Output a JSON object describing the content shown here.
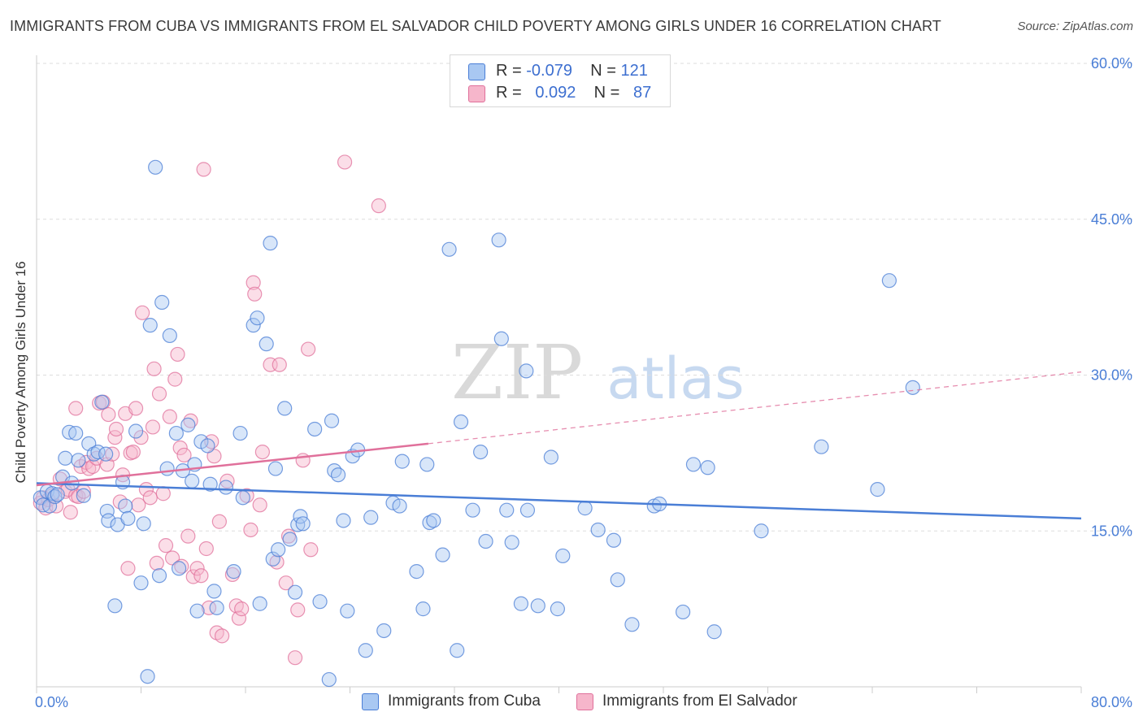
{
  "header": {
    "title": "IMMIGRANTS FROM CUBA VS IMMIGRANTS FROM EL SALVADOR CHILD POVERTY AMONG GIRLS UNDER 16 CORRELATION CHART",
    "source": "Source: ZipAtlas.com"
  },
  "watermark": {
    "zip": "ZIP",
    "atlas": "atlas"
  },
  "legend": {
    "rows": [
      {
        "r_label": "R =",
        "r_value": "-0.079",
        "n_label": "N =",
        "n_value": "121",
        "color": "#a9c8f2"
      },
      {
        "r_label": "R =",
        "r_value": "0.092",
        "n_label": "N =",
        "n_value": "87",
        "color": "#f6b6cb"
      }
    ]
  },
  "chart_data": {
    "type": "scatter",
    "ylabel": "Child Poverty Among Girls Under 16",
    "xlim": [
      0,
      80
    ],
    "ylim": [
      0,
      60
    ],
    "x_tick_labels": {
      "min": "0.0%",
      "max": "80.0%"
    },
    "y_ticks": [
      15,
      30,
      45,
      60
    ],
    "y_tick_labels": [
      "15.0%",
      "30.0%",
      "45.0%",
      "60.0%"
    ],
    "grid": "horizontal dashed",
    "legend_position": "top-center",
    "series": [
      {
        "name": "Immigrants from Cuba",
        "color": "#4a7ed6",
        "fill": "#a9c8f2",
        "trend": {
          "x": [
            0,
            80
          ],
          "y": [
            19.6,
            16.2
          ]
        },
        "points": [
          [
            0.3,
            18.2
          ],
          [
            0.5,
            17.5
          ],
          [
            0.8,
            18.8
          ],
          [
            1.0,
            17.4
          ],
          [
            1.2,
            18.6
          ],
          [
            1.4,
            18.3
          ],
          [
            1.6,
            18.5
          ],
          [
            2.0,
            20.2
          ],
          [
            2.2,
            22.0
          ],
          [
            2.5,
            24.5
          ],
          [
            2.7,
            19.6
          ],
          [
            3.0,
            24.4
          ],
          [
            3.2,
            21.8
          ],
          [
            3.6,
            18.4
          ],
          [
            4.0,
            23.4
          ],
          [
            4.4,
            22.4
          ],
          [
            4.7,
            22.6
          ],
          [
            5.0,
            27.4
          ],
          [
            5.3,
            22.4
          ],
          [
            5.4,
            16.9
          ],
          [
            5.5,
            16.0
          ],
          [
            6.0,
            7.8
          ],
          [
            6.2,
            15.6
          ],
          [
            6.6,
            19.7
          ],
          [
            6.8,
            17.4
          ],
          [
            7.0,
            16.2
          ],
          [
            7.6,
            24.6
          ],
          [
            8.0,
            10.0
          ],
          [
            8.2,
            15.7
          ],
          [
            8.5,
            1.0
          ],
          [
            8.7,
            34.8
          ],
          [
            9.1,
            50.0
          ],
          [
            9.4,
            10.7
          ],
          [
            9.6,
            37.0
          ],
          [
            10.0,
            21.0
          ],
          [
            10.2,
            33.8
          ],
          [
            10.7,
            24.4
          ],
          [
            10.9,
            11.4
          ],
          [
            11.2,
            20.8
          ],
          [
            11.6,
            25.2
          ],
          [
            11.9,
            19.8
          ],
          [
            12.1,
            21.4
          ],
          [
            12.3,
            7.3
          ],
          [
            12.6,
            23.6
          ],
          [
            13.1,
            23.2
          ],
          [
            13.3,
            19.5
          ],
          [
            13.6,
            9.2
          ],
          [
            13.8,
            7.6
          ],
          [
            14.5,
            19.2
          ],
          [
            15.1,
            11.1
          ],
          [
            15.6,
            24.4
          ],
          [
            15.8,
            18.2
          ],
          [
            16.6,
            34.8
          ],
          [
            16.9,
            35.5
          ],
          [
            17.1,
            8.0
          ],
          [
            17.6,
            33.0
          ],
          [
            17.9,
            42.7
          ],
          [
            18.1,
            12.3
          ],
          [
            18.3,
            21.0
          ],
          [
            18.5,
            13.2
          ],
          [
            19.0,
            26.8
          ],
          [
            19.4,
            14.2
          ],
          [
            19.8,
            9.1
          ],
          [
            20.0,
            15.6
          ],
          [
            20.2,
            16.4
          ],
          [
            20.4,
            15.7
          ],
          [
            21.3,
            24.8
          ],
          [
            21.7,
            8.2
          ],
          [
            22.6,
            25.6
          ],
          [
            22.8,
            20.8
          ],
          [
            23.1,
            20.4
          ],
          [
            23.5,
            16.0
          ],
          [
            23.8,
            7.3
          ],
          [
            24.2,
            22.2
          ],
          [
            24.6,
            22.8
          ],
          [
            25.2,
            3.5
          ],
          [
            25.6,
            16.3
          ],
          [
            26.6,
            5.4
          ],
          [
            27.3,
            17.7
          ],
          [
            27.8,
            17.4
          ],
          [
            28.0,
            21.7
          ],
          [
            29.1,
            11.1
          ],
          [
            29.6,
            7.5
          ],
          [
            29.9,
            21.4
          ],
          [
            30.1,
            15.8
          ],
          [
            30.4,
            16.0
          ],
          [
            31.1,
            12.7
          ],
          [
            31.6,
            42.1
          ],
          [
            32.2,
            3.5
          ],
          [
            32.5,
            25.5
          ],
          [
            33.4,
            17.0
          ],
          [
            34.0,
            22.6
          ],
          [
            34.4,
            14.0
          ],
          [
            35.4,
            43.0
          ],
          [
            35.6,
            33.5
          ],
          [
            36.0,
            17.0
          ],
          [
            36.4,
            13.9
          ],
          [
            37.1,
            8.0
          ],
          [
            37.5,
            30.4
          ],
          [
            37.6,
            17.0
          ],
          [
            38.4,
            7.8
          ],
          [
            39.4,
            22.1
          ],
          [
            39.9,
            7.5
          ],
          [
            40.3,
            12.6
          ],
          [
            42.0,
            17.2
          ],
          [
            43.0,
            15.1
          ],
          [
            44.2,
            14.1
          ],
          [
            44.5,
            10.3
          ],
          [
            45.6,
            6.0
          ],
          [
            47.3,
            17.4
          ],
          [
            47.7,
            17.6
          ],
          [
            49.5,
            7.2
          ],
          [
            50.3,
            21.4
          ],
          [
            51.4,
            21.1
          ],
          [
            51.9,
            5.3
          ],
          [
            55.5,
            15.0
          ],
          [
            60.1,
            23.1
          ],
          [
            64.4,
            19.0
          ],
          [
            65.3,
            39.1
          ],
          [
            67.1,
            28.8
          ],
          [
            22.4,
            0.7
          ]
        ]
      },
      {
        "name": "Immigrants from El Salvador",
        "color": "#e0709b",
        "fill": "#f6b6cb",
        "trend": {
          "x": [
            0,
            30
          ],
          "y": [
            19.4,
            23.4
          ]
        },
        "trend_dashed": {
          "x": [
            30,
            80
          ],
          "y": [
            23.4,
            30.3
          ]
        },
        "points": [
          [
            0.3,
            17.7
          ],
          [
            0.5,
            18.2
          ],
          [
            0.7,
            17.2
          ],
          [
            0.9,
            18.0
          ],
          [
            1.2,
            18.4
          ],
          [
            1.5,
            17.4
          ],
          [
            1.8,
            20.0
          ],
          [
            2.2,
            18.8
          ],
          [
            2.4,
            19.0
          ],
          [
            2.6,
            16.8
          ],
          [
            3.0,
            18.4
          ],
          [
            3.0,
            26.8
          ],
          [
            3.2,
            18.3
          ],
          [
            3.4,
            21.2
          ],
          [
            3.6,
            18.8
          ],
          [
            3.8,
            21.6
          ],
          [
            4.0,
            21.0
          ],
          [
            4.3,
            21.2
          ],
          [
            4.6,
            22.0
          ],
          [
            4.8,
            27.3
          ],
          [
            5.1,
            27.4
          ],
          [
            5.4,
            21.4
          ],
          [
            5.5,
            26.2
          ],
          [
            5.8,
            22.4
          ],
          [
            6.0,
            24.0
          ],
          [
            6.1,
            24.8
          ],
          [
            6.4,
            17.8
          ],
          [
            6.6,
            20.4
          ],
          [
            6.8,
            26.3
          ],
          [
            7.0,
            11.4
          ],
          [
            7.2,
            22.5
          ],
          [
            7.4,
            22.6
          ],
          [
            7.6,
            26.8
          ],
          [
            7.8,
            17.5
          ],
          [
            8.0,
            24.0
          ],
          [
            8.1,
            36.0
          ],
          [
            8.4,
            19.0
          ],
          [
            8.7,
            18.2
          ],
          [
            8.9,
            25.0
          ],
          [
            9.0,
            30.6
          ],
          [
            9.2,
            11.9
          ],
          [
            9.4,
            28.2
          ],
          [
            9.7,
            18.6
          ],
          [
            9.9,
            13.6
          ],
          [
            10.2,
            26.0
          ],
          [
            10.4,
            12.4
          ],
          [
            10.6,
            29.6
          ],
          [
            10.8,
            32.0
          ],
          [
            11.0,
            23.0
          ],
          [
            11.1,
            11.6
          ],
          [
            11.3,
            22.3
          ],
          [
            11.6,
            14.5
          ],
          [
            11.8,
            25.6
          ],
          [
            12.0,
            10.6
          ],
          [
            12.3,
            11.4
          ],
          [
            12.6,
            10.7
          ],
          [
            12.8,
            49.8
          ],
          [
            13.0,
            13.3
          ],
          [
            13.2,
            7.6
          ],
          [
            13.4,
            23.6
          ],
          [
            13.6,
            22.2
          ],
          [
            13.8,
            5.2
          ],
          [
            14.0,
            15.9
          ],
          [
            14.2,
            4.9
          ],
          [
            14.6,
            19.8
          ],
          [
            15.0,
            10.8
          ],
          [
            15.3,
            7.8
          ],
          [
            15.5,
            6.6
          ],
          [
            15.7,
            7.5
          ],
          [
            16.1,
            18.4
          ],
          [
            16.4,
            15.1
          ],
          [
            16.6,
            38.9
          ],
          [
            16.7,
            37.8
          ],
          [
            17.1,
            17.5
          ],
          [
            17.3,
            22.6
          ],
          [
            17.9,
            31.0
          ],
          [
            18.6,
            31.0
          ],
          [
            19.1,
            10.0
          ],
          [
            19.3,
            14.5
          ],
          [
            19.8,
            2.8
          ],
          [
            20.0,
            7.4
          ],
          [
            20.4,
            21.8
          ],
          [
            20.8,
            32.5
          ],
          [
            21.0,
            13.2
          ],
          [
            23.6,
            50.5
          ],
          [
            26.2,
            46.3
          ],
          [
            18.4,
            12.0
          ]
        ]
      }
    ]
  }
}
